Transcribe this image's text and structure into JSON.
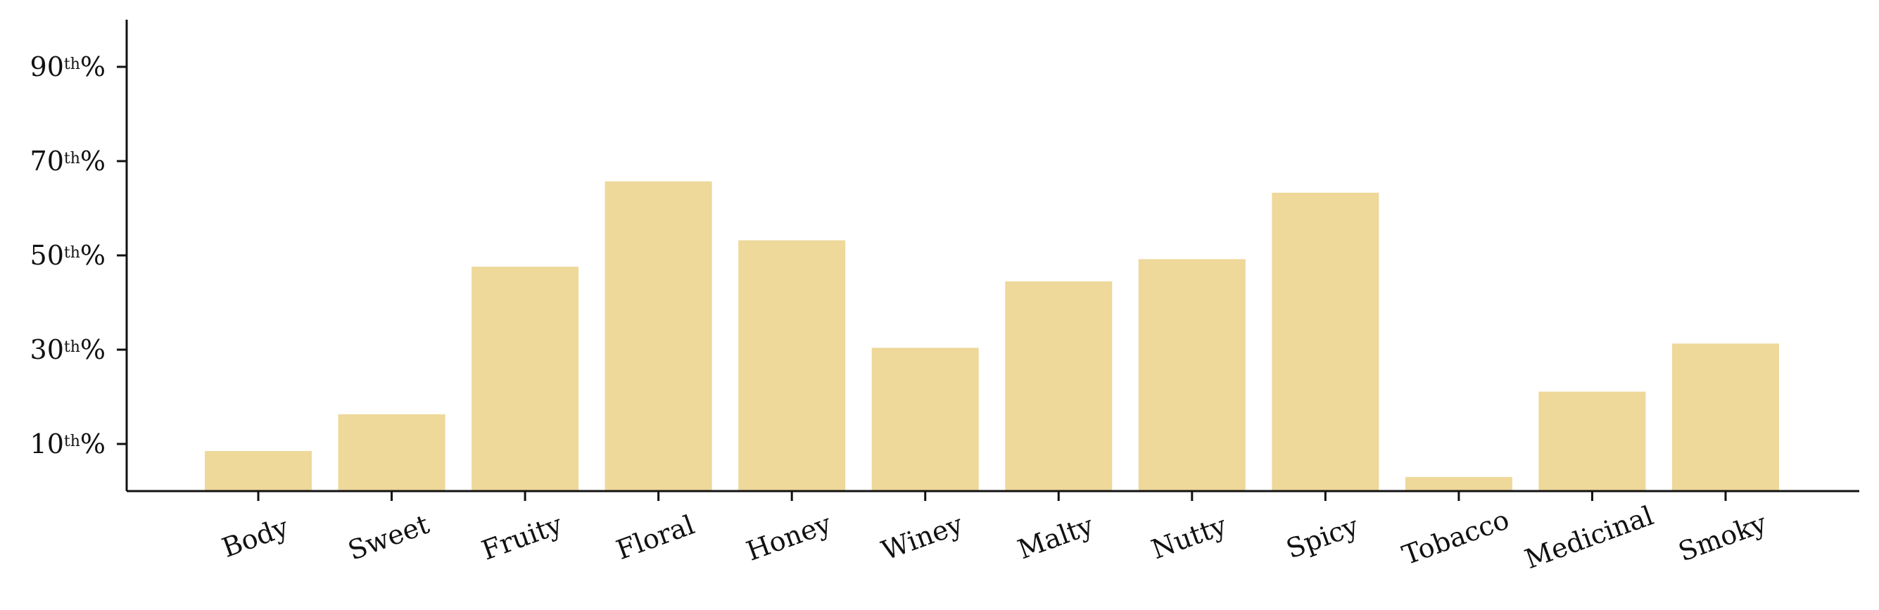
{
  "chart_data": {
    "type": "bar",
    "categories": [
      "Body",
      "Sweet",
      "Fruity",
      "Floral",
      "Honey",
      "Winey",
      "Malty",
      "Nutty",
      "Spicy",
      "Tobacco",
      "Medicinal",
      "Smoky"
    ],
    "values": [
      8.5,
      16.3,
      47.6,
      65.7,
      53.2,
      30.4,
      44.5,
      49.2,
      63.3,
      3.0,
      21.1,
      31.3
    ],
    "ylim": [
      0,
      100
    ],
    "yticks": [
      {
        "value": 10,
        "num": "10",
        "sup": "th",
        "suffix": "%"
      },
      {
        "value": 30,
        "num": "30",
        "sup": "th",
        "suffix": "%"
      },
      {
        "value": 50,
        "num": "50",
        "sup": "th",
        "suffix": "%"
      },
      {
        "value": 70,
        "num": "70",
        "sup": "th",
        "suffix": "%"
      },
      {
        "value": 90,
        "num": "90",
        "sup": "th",
        "suffix": "%"
      }
    ],
    "title": "",
    "xlabel": "",
    "ylabel": "",
    "bar_color": "#eed89a",
    "axis_color": "#111111",
    "grid": false,
    "legend": "none",
    "xtick_rotation_deg": -20
  }
}
